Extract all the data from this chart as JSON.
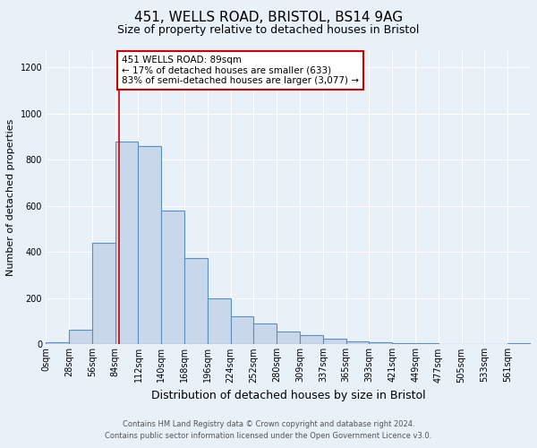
{
  "title1": "451, WELLS ROAD, BRISTOL, BS14 9AG",
  "title2": "Size of property relative to detached houses in Bristol",
  "xlabel": "Distribution of detached houses by size in Bristol",
  "ylabel": "Number of detached properties",
  "bin_labels": [
    "0sqm",
    "28sqm",
    "56sqm",
    "84sqm",
    "112sqm",
    "140sqm",
    "168sqm",
    "196sqm",
    "224sqm",
    "252sqm",
    "280sqm",
    "309sqm",
    "337sqm",
    "365sqm",
    "393sqm",
    "421sqm",
    "449sqm",
    "477sqm",
    "505sqm",
    "533sqm",
    "561sqm"
  ],
  "bar_heights": [
    10,
    65,
    440,
    880,
    860,
    580,
    375,
    200,
    120,
    90,
    55,
    42,
    25,
    13,
    10,
    5,
    5,
    3,
    2,
    2,
    5
  ],
  "bar_color": "#c8d8ea",
  "bar_edge_color": "#5b8fbe",
  "background_color": "#e8f0f8",
  "grid_color": "#ffffff",
  "vline_x": 89,
  "vline_color": "#cc0000",
  "annotation_line1": "451 WELLS ROAD: 89sqm",
  "annotation_line2": "← 17% of detached houses are smaller (633)",
  "annotation_line3": "83% of semi-detached houses are larger (3,077) →",
  "annotation_box_color": "#ffffff",
  "annotation_box_edge_color": "#cc0000",
  "ylim": [
    0,
    1270
  ],
  "yticks": [
    0,
    200,
    400,
    600,
    800,
    1000,
    1200
  ],
  "footnote1": "Contains HM Land Registry data © Crown copyright and database right 2024.",
  "footnote2": "Contains public sector information licensed under the Open Government Licence v3.0.",
  "bin_width": 28,
  "title1_fontsize": 11,
  "title2_fontsize": 9,
  "xlabel_fontsize": 9,
  "ylabel_fontsize": 8,
  "annotation_fontsize": 7.5,
  "tick_fontsize": 7,
  "footnote_fontsize": 6
}
